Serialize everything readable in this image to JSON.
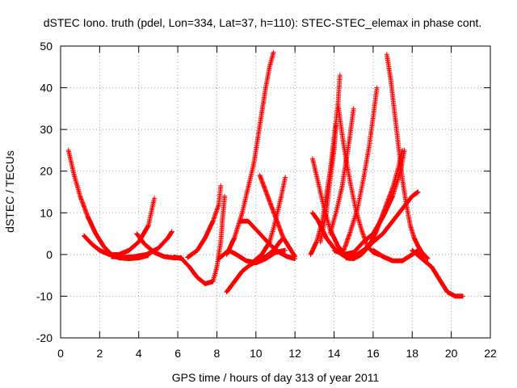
{
  "chart_data": {
    "type": "scatter",
    "title": "dSTEC Iono. truth (pdel, Lon=334, Lat=37, h=110): STEC-STEC_elemax in phase cont.",
    "xlabel": "GPS time / hours of day 313 of year 2011",
    "ylabel": "dSTEC  / TECUs",
    "xlim": [
      0,
      22
    ],
    "ylim": [
      -20,
      50
    ],
    "x_ticks": [
      0,
      2,
      4,
      6,
      8,
      10,
      12,
      14,
      16,
      18,
      20,
      22
    ],
    "y_ticks": [
      -20,
      -10,
      0,
      10,
      20,
      30,
      40,
      50
    ],
    "x_tick_labels": [
      "0",
      "2",
      "4",
      "6",
      "8",
      "10",
      "12",
      "14",
      "16",
      "18",
      "20",
      "22"
    ],
    "y_tick_labels": [
      "-20",
      "-10",
      "0",
      "10",
      "20",
      "30",
      "40",
      "50"
    ],
    "grid": true,
    "marker": "+",
    "marker_color": "#ff0000",
    "series": [
      {
        "points": [
          [
            0.4,
            25
          ],
          [
            0.7,
            19
          ],
          [
            1.0,
            14
          ],
          [
            1.4,
            9
          ],
          [
            1.8,
            5
          ],
          [
            2.2,
            2
          ],
          [
            2.6,
            0
          ],
          [
            3.0,
            -0.8
          ],
          [
            3.5,
            -1
          ],
          [
            4.0,
            -0.8
          ],
          [
            4.5,
            -0.2
          ]
        ]
      },
      {
        "points": [
          [
            1.2,
            4.5
          ],
          [
            1.6,
            2.5
          ],
          [
            2.0,
            1
          ],
          [
            2.5,
            0
          ],
          [
            3.0,
            0
          ],
          [
            3.5,
            1
          ],
          [
            4.0,
            3
          ],
          [
            4.5,
            7
          ],
          [
            4.8,
            13.5
          ]
        ]
      },
      {
        "points": [
          [
            3.9,
            5
          ],
          [
            4.3,
            2.5
          ],
          [
            4.8,
            0.5
          ],
          [
            5.3,
            -0.5
          ],
          [
            5.8,
            -0.8
          ],
          [
            6.2,
            -0.8
          ]
        ]
      },
      {
        "points": [
          [
            2.6,
            -0.5
          ],
          [
            3.2,
            -0.7
          ],
          [
            3.8,
            -0.5
          ],
          [
            4.4,
            0
          ],
          [
            5.0,
            1.5
          ],
          [
            5.5,
            4
          ],
          [
            5.7,
            5.5
          ]
        ]
      },
      {
        "points": [
          [
            5.8,
            -0.6
          ],
          [
            6.2,
            -1
          ],
          [
            6.6,
            -3
          ],
          [
            7.0,
            -5.5
          ],
          [
            7.4,
            -7
          ],
          [
            7.8,
            -6.5
          ],
          [
            8.0,
            -3
          ],
          [
            8.2,
            3
          ],
          [
            8.3,
            9
          ],
          [
            8.4,
            14
          ]
        ]
      },
      {
        "points": [
          [
            6.5,
            -0.7
          ],
          [
            7.0,
            1
          ],
          [
            7.4,
            4
          ],
          [
            7.8,
            8
          ],
          [
            8.1,
            12
          ],
          [
            8.2,
            16.5
          ]
        ]
      },
      {
        "points": [
          [
            8.5,
            -9
          ],
          [
            8.9,
            -6.5
          ],
          [
            9.3,
            -4
          ],
          [
            9.7,
            -2.5
          ],
          [
            10.1,
            -1.5
          ],
          [
            10.5,
            -0.5
          ],
          [
            10.9,
            1
          ],
          [
            11.3,
            3.5
          ]
        ]
      },
      {
        "points": [
          [
            8.5,
            0
          ],
          [
            8.9,
            4
          ],
          [
            9.3,
            10
          ],
          [
            9.6,
            16
          ],
          [
            9.9,
            22
          ],
          [
            10.1,
            28
          ],
          [
            10.3,
            34
          ],
          [
            10.5,
            40
          ],
          [
            10.7,
            45
          ],
          [
            10.9,
            48.5
          ]
        ]
      },
      {
        "points": [
          [
            8.1,
            -1
          ],
          [
            8.6,
            1
          ],
          [
            9.0,
            0
          ],
          [
            9.5,
            -1.5
          ],
          [
            10.0,
            -2
          ],
          [
            10.5,
            -1
          ],
          [
            11.0,
            0.5
          ],
          [
            11.5,
            1
          ]
        ]
      },
      {
        "points": [
          [
            9.2,
            8
          ],
          [
            9.6,
            8
          ],
          [
            10.0,
            6
          ],
          [
            10.4,
            4
          ],
          [
            10.8,
            2
          ],
          [
            11.2,
            0.5
          ],
          [
            11.6,
            -0.5
          ],
          [
            12.0,
            -1
          ]
        ]
      },
      {
        "points": [
          [
            10.2,
            19
          ],
          [
            10.6,
            14
          ],
          [
            11.0,
            9
          ],
          [
            11.4,
            4
          ],
          [
            11.8,
            1
          ],
          [
            12.0,
            -0.5
          ]
        ]
      },
      {
        "points": [
          [
            9.8,
            -2
          ],
          [
            10.3,
            0
          ],
          [
            10.7,
            3
          ],
          [
            11.0,
            8
          ],
          [
            11.3,
            14
          ],
          [
            11.5,
            18.5
          ]
        ]
      },
      {
        "points": [
          [
            12.9,
            23
          ],
          [
            13.2,
            17
          ],
          [
            13.5,
            11
          ],
          [
            13.8,
            6
          ],
          [
            14.2,
            2
          ],
          [
            14.6,
            0
          ],
          [
            15.0,
            -0.5
          ]
        ]
      },
      {
        "points": [
          [
            12.9,
            10
          ],
          [
            13.2,
            8
          ],
          [
            13.6,
            4
          ],
          [
            14.0,
            1.5
          ],
          [
            14.4,
            0
          ],
          [
            14.8,
            -1
          ]
        ]
      },
      {
        "points": [
          [
            12.8,
            0
          ],
          [
            13.1,
            3
          ],
          [
            13.4,
            8
          ],
          [
            13.6,
            14
          ],
          [
            13.8,
            20
          ],
          [
            14.0,
            28
          ],
          [
            14.2,
            36
          ],
          [
            14.3,
            43
          ]
        ]
      },
      {
        "points": [
          [
            13.3,
            3
          ],
          [
            13.6,
            10
          ],
          [
            13.8,
            18
          ],
          [
            14.0,
            25
          ],
          [
            14.1,
            31
          ]
        ]
      },
      {
        "points": [
          [
            13.8,
            5
          ],
          [
            14.1,
            10
          ],
          [
            14.4,
            16
          ],
          [
            14.6,
            22
          ],
          [
            14.8,
            28
          ],
          [
            15.0,
            35
          ]
        ]
      },
      {
        "points": [
          [
            14.2,
            36
          ],
          [
            14.5,
            26
          ],
          [
            14.8,
            18
          ],
          [
            15.1,
            11
          ],
          [
            15.4,
            6
          ],
          [
            15.7,
            2
          ],
          [
            16.0,
            0.5
          ],
          [
            16.3,
            0
          ]
        ]
      },
      {
        "points": [
          [
            14.0,
            1
          ],
          [
            14.5,
            0
          ],
          [
            15.0,
            0.5
          ],
          [
            15.5,
            3
          ],
          [
            16.0,
            5
          ],
          [
            16.5,
            9
          ],
          [
            17.0,
            14
          ],
          [
            17.4,
            20
          ],
          [
            17.6,
            25
          ]
        ]
      },
      {
        "points": [
          [
            14.5,
            1
          ],
          [
            14.8,
            5
          ],
          [
            15.2,
            11
          ],
          [
            15.5,
            18
          ],
          [
            15.8,
            26
          ],
          [
            16.0,
            33
          ],
          [
            16.2,
            40
          ]
        ]
      },
      {
        "points": [
          [
            16.7,
            48
          ],
          [
            16.9,
            42
          ],
          [
            17.1,
            34
          ],
          [
            17.3,
            26
          ],
          [
            17.5,
            18
          ],
          [
            17.7,
            12
          ],
          [
            17.9,
            7
          ],
          [
            18.1,
            4
          ],
          [
            18.3,
            2
          ],
          [
            18.5,
            0.5
          ],
          [
            18.8,
            -1
          ]
        ]
      },
      {
        "points": [
          [
            17.5,
            25
          ],
          [
            17.3,
            21
          ],
          [
            17.0,
            16
          ],
          [
            16.6,
            11
          ],
          [
            16.2,
            6
          ],
          [
            15.8,
            2
          ],
          [
            15.4,
            0
          ],
          [
            15.0,
            -1
          ],
          [
            14.6,
            -0.8
          ]
        ]
      },
      {
        "points": [
          [
            15.0,
            -0.5
          ],
          [
            15.5,
            1
          ],
          [
            16.0,
            3
          ],
          [
            16.5,
            5
          ],
          [
            17.0,
            8
          ],
          [
            17.5,
            11
          ],
          [
            18.0,
            14
          ],
          [
            18.3,
            15
          ]
        ]
      },
      {
        "points": [
          [
            16.0,
            1
          ],
          [
            16.5,
            -0.5
          ],
          [
            17.0,
            -1.5
          ],
          [
            17.5,
            -1.5
          ],
          [
            18.0,
            0
          ],
          [
            18.3,
            1
          ],
          [
            18.6,
            -0.5
          ]
        ]
      },
      {
        "points": [
          [
            18.0,
            1
          ],
          [
            18.5,
            -1
          ],
          [
            19.0,
            -3
          ],
          [
            19.4,
            -6
          ],
          [
            19.8,
            -9
          ],
          [
            20.2,
            -10
          ],
          [
            20.6,
            -10
          ]
        ]
      }
    ]
  }
}
